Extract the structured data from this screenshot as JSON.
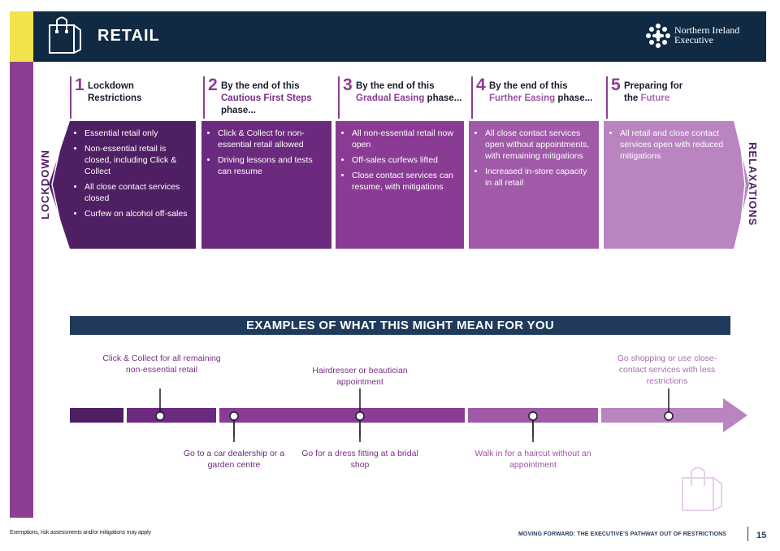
{
  "header": {
    "title": "RETAIL",
    "logo_text_line1": "Northern Ireland",
    "logo_text_line2": "Executive"
  },
  "side_labels": {
    "left": "LOCKDOWN",
    "right": "RELAXATIONS"
  },
  "phases": [
    {
      "number": "1",
      "title_plain": "Lockdown Restrictions",
      "items": [
        "Essential retail only",
        "Non-essential retail is closed, including Click & Collect",
        "All close contact services closed",
        "Curfew on alcohol off-sales"
      ]
    },
    {
      "number": "2",
      "title_prefix": "By the end of this ",
      "title_highlight": "Cautious First Steps",
      "title_suffix": " phase...",
      "items": [
        "Click & Collect for non-essential retail allowed",
        "Driving lessons and tests can resume"
      ]
    },
    {
      "number": "3",
      "title_prefix": "By the end of this ",
      "title_highlight": "Gradual Easing",
      "title_suffix": " phase...",
      "items": [
        "All non-essential retail now open",
        "Off-sales curfews lifted",
        "Close contact services can resume, with mitigations"
      ]
    },
    {
      "number": "4",
      "title_prefix": "By the end of this ",
      "title_highlight": "Further Easing",
      "title_suffix": " phase...",
      "items": [
        "All close contact services open without appointments, with remaining mitigations",
        "Increased in-store capacity in all retail"
      ]
    },
    {
      "number": "5",
      "title_prefix": "Preparing for the ",
      "title_highlight": "Future",
      "title_suffix": "",
      "items": [
        "All retail and close contact services open with reduced mitigations"
      ]
    }
  ],
  "examples": {
    "banner": "EXAMPLES OF WHAT THIS MIGHT MEAN FOR YOU",
    "above": [
      "Click & Collect for all remaining non-essential retail",
      "Hairdresser or beautician appointment",
      "Go shopping or use close-contact services with less restrictions"
    ],
    "below": [
      "Go to a car dealership or a garden centre",
      "Go for a dress fitting at a bridal shop",
      "Walk in for a haircut without an appointment"
    ]
  },
  "footer": {
    "left": "Exemptions, risk assessments and/or mitigations may apply",
    "right": "MOVING FORWARD: THE EXECUTIVE'S PATHWAY OUT OF RESTRICTIONS",
    "page_number": "15"
  },
  "colors": {
    "header_bg": "#112a44",
    "accent_yellow": "#f2e34b",
    "accent_purple": "#8c3e93",
    "phase_1": "#4f1f64",
    "phase_2": "#6b2a7e",
    "phase_3": "#8a3c94",
    "phase_4": "#a05aa8",
    "phase_5": "#ba84c0"
  },
  "icons": {
    "header_icon": "shopping-bag-icon",
    "logo_icon": "ni-executive-logo-icon",
    "watermark_icon": "shopping-bag-icon"
  }
}
